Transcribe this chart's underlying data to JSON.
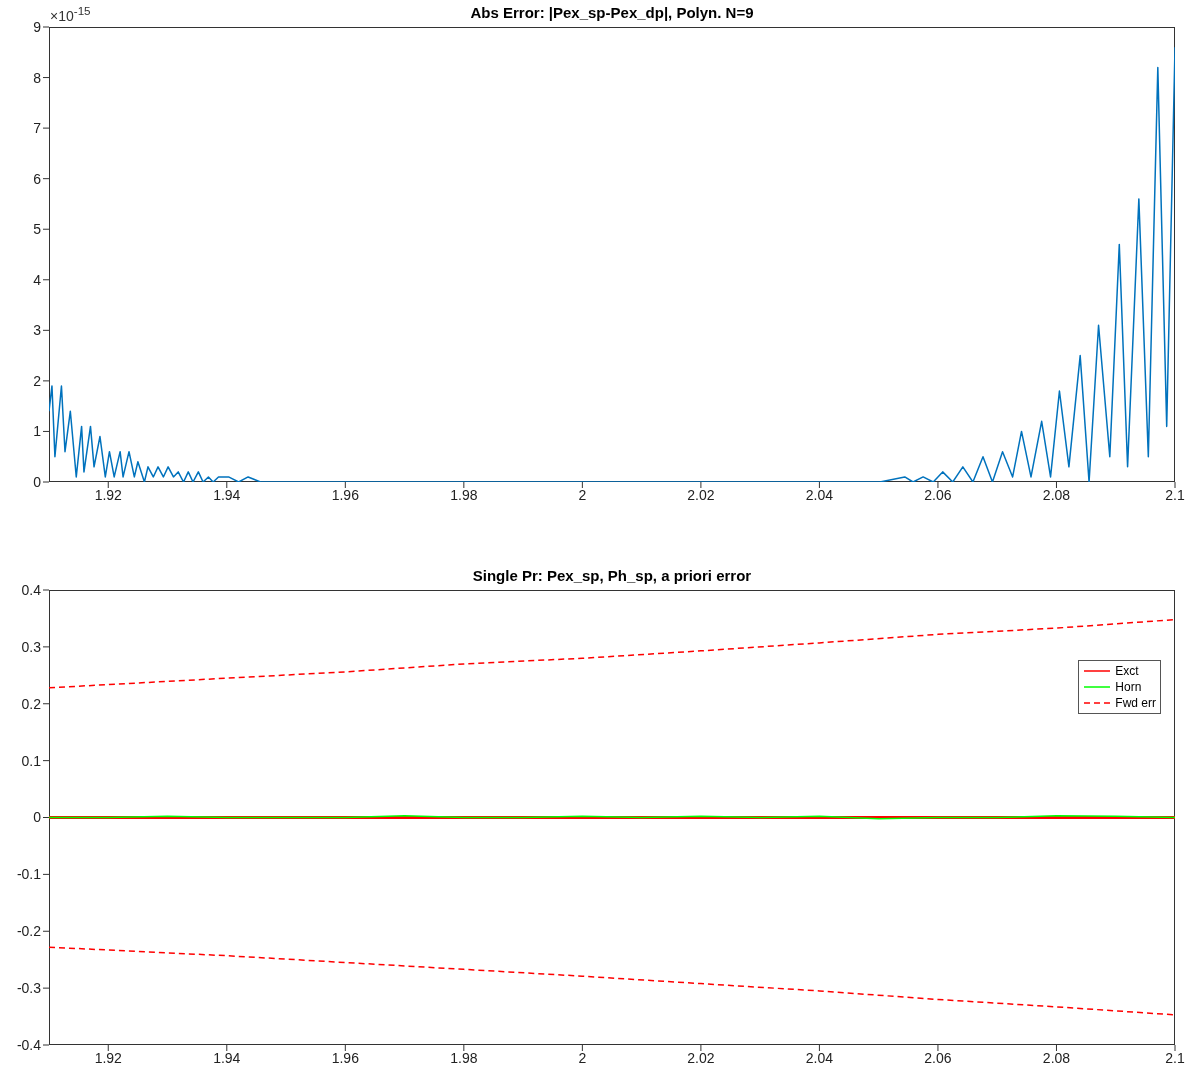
{
  "chart_data": [
    {
      "type": "line",
      "title": "Abs Error: |Pex_sp-Pex_dp|, Polyn. N=9",
      "annotations": [
        "×10$^{-15}$"
      ],
      "xlim": [
        1.91,
        2.1
      ],
      "xticks": [
        1.92,
        1.94,
        1.96,
        1.98,
        2,
        2.02,
        2.04,
        2.06,
        2.08,
        2.1
      ],
      "ylim": [
        0,
        9
      ],
      "yticks": [
        0,
        1,
        2,
        3,
        4,
        5,
        6,
        7,
        8,
        9
      ],
      "marker": "none",
      "series": [
        {
          "color": "#0072bd",
          "line_style": "solid",
          "x": [
            1.91,
            1.9105,
            1.911,
            1.9121,
            1.9127,
            1.9136,
            1.9146,
            1.9155,
            1.9159,
            1.917,
            1.9176,
            1.9186,
            1.9195,
            1.9202,
            1.921,
            1.922,
            1.9225,
            1.9235,
            1.9244,
            1.925,
            1.9261,
            1.9267,
            1.9276,
            1.9284,
            1.9293,
            1.9301,
            1.931,
            1.9318,
            1.9327,
            1.9335,
            1.9343,
            1.9352,
            1.936,
            1.9369,
            1.9377,
            1.9386,
            1.9403,
            1.942,
            1.9436,
            1.9457,
            1.95,
            1.96,
            2.0,
            2.04,
            2.0502,
            2.0544,
            2.0558,
            2.0575,
            2.0592,
            2.0608,
            2.0625,
            2.0642,
            2.0659,
            2.0676,
            2.0692,
            2.0709,
            2.0726,
            2.0741,
            2.0757,
            2.0775,
            2.079,
            2.0805,
            2.0821,
            2.084,
            2.0855,
            2.0871,
            2.089,
            2.0906,
            2.092,
            2.0939,
            2.0955,
            2.0971,
            2.0986,
            2.1
          ],
          "values": [
            1.4,
            1.9,
            0.5,
            1.9,
            0.6,
            1.4,
            0.1,
            1.1,
            0.2,
            1.1,
            0.3,
            0.9,
            0.1,
            0.6,
            0.1,
            0.6,
            0.1,
            0.6,
            0.1,
            0.4,
            0.0,
            0.3,
            0.1,
            0.3,
            0.1,
            0.3,
            0.1,
            0.2,
            0.0,
            0.2,
            0.0,
            0.2,
            0.0,
            0.1,
            0.0,
            0.1,
            0.1,
            0.0,
            0.1,
            0,
            0.0,
            0.0,
            0,
            0.0,
            0.0,
            0.1,
            0,
            0.1,
            0,
            0.2,
            0,
            0.3,
            0.0,
            0.5,
            0.0,
            0.6,
            0.1,
            1.0,
            0.1,
            1.2,
            0.1,
            1.8,
            0.3,
            2.5,
            0.0,
            3.1,
            0.5,
            4.7,
            0.3,
            5.6,
            0.5,
            8.2,
            1.1,
            8.6
          ]
        }
      ]
    },
    {
      "type": "line",
      "title": "Single Pr: Pex_sp, Ph_sp, a priori error",
      "xlim": [
        1.91,
        2.1
      ],
      "xticks": [
        1.92,
        1.94,
        1.96,
        1.98,
        2,
        2.02,
        2.04,
        2.06,
        2.08,
        2.1
      ],
      "ylim": [
        -0.4,
        0.4
      ],
      "yticks": [
        -0.4,
        -0.3,
        -0.2,
        -0.1,
        0,
        0.1,
        0.2,
        0.3,
        0.4
      ],
      "marker": "none",
      "legend": "top right",
      "series": [
        {
          "name": "Exct",
          "color": "#ff0000",
          "line_style": "solid",
          "x": [
            1.91,
            2.1
          ],
          "values": [
            0,
            0
          ]
        },
        {
          "name": "Horn",
          "color": "#00ff00",
          "line_style": "solid",
          "x": [
            1.91,
            1.92,
            1.93,
            1.94,
            1.95,
            1.96,
            1.97,
            1.98,
            1.99,
            2.0,
            2.01,
            2.02,
            2.03,
            2.04,
            2.05,
            2.06,
            2.07,
            2.08,
            2.09,
            2.1
          ],
          "values": [
            0,
            0,
            0.002,
            0,
            0,
            0,
            0.003,
            0,
            0,
            0.002,
            0,
            0.002,
            0,
            0.002,
            -0.002,
            0,
            0,
            0.003,
            0.002,
            0
          ]
        },
        {
          "name": "Fwd err",
          "color": "#ff0000",
          "line_style": "dashed",
          "x": [
            1.91,
            1.94,
            1.96,
            1.98,
            2.0,
            2.02,
            2.04,
            2.06,
            2.08,
            2.1
          ],
          "values": [
            0.228,
            0.245,
            0.256,
            0.27,
            0.28,
            0.293,
            0.307,
            0.322,
            0.333,
            0.348
          ]
        },
        {
          "color": "#ff0000",
          "line_style": "dashed",
          "x": [
            1.91,
            1.94,
            1.96,
            1.98,
            2.0,
            2.02,
            2.04,
            2.06,
            2.08,
            2.1
          ],
          "values": [
            -0.228,
            -0.243,
            -0.255,
            -0.267,
            -0.279,
            -0.292,
            -0.305,
            -0.32,
            -0.333,
            -0.347
          ]
        }
      ]
    }
  ]
}
